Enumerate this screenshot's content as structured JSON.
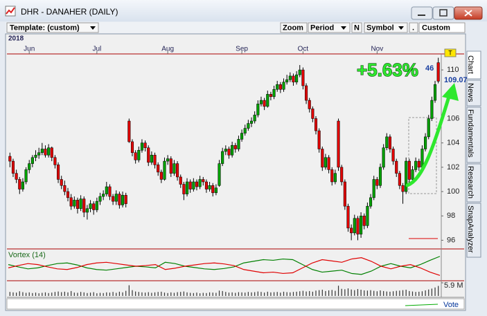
{
  "window": {
    "title": "DHR - DANAHER (DAILY)"
  },
  "toolbar": {
    "template": "Template: (custom)",
    "zoom": "Zoom",
    "period": "Period",
    "n": "N",
    "symbol": "Symbol",
    "dot": ".",
    "custom": "Custom"
  },
  "tabs": [
    "Chart",
    "News",
    "Fundamentals",
    "Research",
    "SnapAnalyzer"
  ],
  "footer": {
    "vote": "Vote"
  },
  "chart_data": [
    {
      "type": "candlestick",
      "year_label": "2018",
      "annotation": "+5.63%",
      "tag": "T",
      "partial_label": "46",
      "last_price": 109.07,
      "up_color": "#00a000",
      "down_color": "#e00000",
      "xlim": [
        -0.5,
        133.5
      ],
      "xticks": [
        {
          "value": 6,
          "label": "Jun"
        },
        {
          "value": 27,
          "label": "Jul"
        },
        {
          "value": 49,
          "label": "Aug"
        },
        {
          "value": 72,
          "label": "Sep"
        },
        {
          "value": 91,
          "label": "Oct"
        },
        {
          "value": 114,
          "label": "Nov"
        }
      ],
      "ylim": [
        95.4,
        111.2
      ],
      "yticks": [
        96,
        98,
        100,
        102,
        104,
        106,
        110
      ],
      "ohlc": [
        [
          102.9,
          103.2,
          102.0,
          102.5
        ],
        [
          102.5,
          102.7,
          101.2,
          101.5
        ],
        [
          101.5,
          101.8,
          100.7,
          101.0
        ],
        [
          101.0,
          101.2,
          99.8,
          100.2
        ],
        [
          100.2,
          101.1,
          100.0,
          100.8
        ],
        [
          100.8,
          102.0,
          100.6,
          101.8
        ],
        [
          101.8,
          102.6,
          101.5,
          102.3
        ],
        [
          102.3,
          103.0,
          102.0,
          102.8
        ],
        [
          102.8,
          103.4,
          102.5,
          103.0
        ],
        [
          103.0,
          103.6,
          102.7,
          103.2
        ],
        [
          103.2,
          104.0,
          103.0,
          103.5
        ],
        [
          103.5,
          103.8,
          102.8,
          103.0
        ],
        [
          103.0,
          103.9,
          102.8,
          103.6
        ],
        [
          103.6,
          103.7,
          102.5,
          102.8
        ],
        [
          102.8,
          103.0,
          101.9,
          102.2
        ],
        [
          102.2,
          102.4,
          100.7,
          101.0
        ],
        [
          101.0,
          101.3,
          100.2,
          100.5
        ],
        [
          100.5,
          100.9,
          99.7,
          100.0
        ],
        [
          100.0,
          100.3,
          99.2,
          99.5
        ],
        [
          99.5,
          99.8,
          98.5,
          98.8
        ],
        [
          98.8,
          99.6,
          98.6,
          99.3
        ],
        [
          99.3,
          99.5,
          98.2,
          98.6
        ],
        [
          98.6,
          99.7,
          98.4,
          99.4
        ],
        [
          99.4,
          99.6,
          97.9,
          98.3
        ],
        [
          98.3,
          98.9,
          97.7,
          98.6
        ],
        [
          98.6,
          99.3,
          98.3,
          99.0
        ],
        [
          99.0,
          99.2,
          98.1,
          98.5
        ],
        [
          98.5,
          99.5,
          98.3,
          99.2
        ],
        [
          99.2,
          99.9,
          98.9,
          99.6
        ],
        [
          99.6,
          100.1,
          99.3,
          99.8
        ],
        [
          99.8,
          100.8,
          99.6,
          100.4
        ],
        [
          100.4,
          100.6,
          99.3,
          99.6
        ],
        [
          99.6,
          99.8,
          98.9,
          99.2
        ],
        [
          99.2,
          100.1,
          98.9,
          99.8
        ],
        [
          99.8,
          100.0,
          98.6,
          98.9
        ],
        [
          98.9,
          100.0,
          98.7,
          99.7
        ],
        [
          99.7,
          99.9,
          98.7,
          99.0
        ],
        [
          105.8,
          106.0,
          104.0,
          104.1
        ],
        [
          104.1,
          104.3,
          102.9,
          103.2
        ],
        [
          103.2,
          103.4,
          102.3,
          102.6
        ],
        [
          102.6,
          103.7,
          102.4,
          103.4
        ],
        [
          103.4,
          104.3,
          103.2,
          104.0
        ],
        [
          104.0,
          104.2,
          103.3,
          103.6
        ],
        [
          103.6,
          103.8,
          102.1,
          102.4
        ],
        [
          102.4,
          103.3,
          102.2,
          103.0
        ],
        [
          103.0,
          103.2,
          101.9,
          102.2
        ],
        [
          102.2,
          102.4,
          101.3,
          101.6
        ],
        [
          101.6,
          101.8,
          100.7,
          101.0
        ],
        [
          101.0,
          102.8,
          100.9,
          102.5
        ],
        [
          102.5,
          103.0,
          102.2,
          102.7
        ],
        [
          102.7,
          102.9,
          101.2,
          101.5
        ],
        [
          101.5,
          102.6,
          101.3,
          102.3
        ],
        [
          102.3,
          102.5,
          100.9,
          101.2
        ],
        [
          101.2,
          101.4,
          100.3,
          100.6
        ],
        [
          100.6,
          100.8,
          99.3,
          99.8
        ],
        [
          99.8,
          101.1,
          99.6,
          100.8
        ],
        [
          100.8,
          101.0,
          99.9,
          100.2
        ],
        [
          100.2,
          101.1,
          100.0,
          100.8
        ],
        [
          100.8,
          101.0,
          100.1,
          100.4
        ],
        [
          100.4,
          101.3,
          100.2,
          101.0
        ],
        [
          101.0,
          101.2,
          100.5,
          100.8
        ],
        [
          100.8,
          101.0,
          99.9,
          100.2
        ],
        [
          100.2,
          100.8,
          100.0,
          100.5
        ],
        [
          100.5,
          100.7,
          99.6,
          99.9
        ],
        [
          99.9,
          100.6,
          99.7,
          100.3
        ],
        [
          100.5,
          102.6,
          100.4,
          102.3
        ],
        [
          102.3,
          103.6,
          102.1,
          103.3
        ],
        [
          103.3,
          103.8,
          103.0,
          103.5
        ],
        [
          103.5,
          103.7,
          102.7,
          103.0
        ],
        [
          103.0,
          104.1,
          102.8,
          103.8
        ],
        [
          103.8,
          104.0,
          103.2,
          103.5
        ],
        [
          103.5,
          104.6,
          103.3,
          104.3
        ],
        [
          104.3,
          105.1,
          104.1,
          104.8
        ],
        [
          104.8,
          105.5,
          104.6,
          105.2
        ],
        [
          105.2,
          105.9,
          105.0,
          105.6
        ],
        [
          105.6,
          106.1,
          105.3,
          105.8
        ],
        [
          105.8,
          106.6,
          105.6,
          106.3
        ],
        [
          106.3,
          107.5,
          106.1,
          107.2
        ],
        [
          107.2,
          107.8,
          107.0,
          107.5
        ],
        [
          107.5,
          107.7,
          106.7,
          107.0
        ],
        [
          107.0,
          108.3,
          106.9,
          108.0
        ],
        [
          108.0,
          108.2,
          107.5,
          107.8
        ],
        [
          107.8,
          108.7,
          107.6,
          108.4
        ],
        [
          108.4,
          109.1,
          108.2,
          108.8
        ],
        [
          108.8,
          109.0,
          108.1,
          108.4
        ],
        [
          108.4,
          109.3,
          108.2,
          109.0
        ],
        [
          109.0,
          109.6,
          108.8,
          109.2
        ],
        [
          109.2,
          109.8,
          109.0,
          109.5
        ],
        [
          109.5,
          109.7,
          108.7,
          109.0
        ],
        [
          109.0,
          109.9,
          108.8,
          109.6
        ],
        [
          109.6,
          110.4,
          109.4,
          110.0
        ],
        [
          110.0,
          110.2,
          108.4,
          108.7
        ],
        [
          108.7,
          108.9,
          107.2,
          107.5
        ],
        [
          107.5,
          107.7,
          106.5,
          106.8
        ],
        [
          106.8,
          107.0,
          105.7,
          106.0
        ],
        [
          106.0,
          106.2,
          104.7,
          105.0
        ],
        [
          105.0,
          105.2,
          103.2,
          103.5
        ],
        [
          103.5,
          103.7,
          101.7,
          102.0
        ],
        [
          102.0,
          103.1,
          101.8,
          102.8
        ],
        [
          102.8,
          103.0,
          101.5,
          101.8
        ],
        [
          101.8,
          102.0,
          100.5,
          100.8
        ],
        [
          100.8,
          101.8,
          100.6,
          101.5
        ],
        [
          105.8,
          106.0,
          101.7,
          102.0
        ],
        [
          102.0,
          102.2,
          100.5,
          100.8
        ],
        [
          100.8,
          101.0,
          98.5,
          98.8
        ],
        [
          98.8,
          99.0,
          96.7,
          97.0
        ],
        [
          97.0,
          97.3,
          96.0,
          96.6
        ],
        [
          96.6,
          98.1,
          96.4,
          97.8
        ],
        [
          97.8,
          98.0,
          96.0,
          96.5
        ],
        [
          96.5,
          98.3,
          96.2,
          98.0
        ],
        [
          98.0,
          98.2,
          96.9,
          97.2
        ],
        [
          97.2,
          99.1,
          97.0,
          98.8
        ],
        [
          98.8,
          99.8,
          98.6,
          99.5
        ],
        [
          99.5,
          101.3,
          99.3,
          101.0
        ],
        [
          101.0,
          101.2,
          100.2,
          100.5
        ],
        [
          100.5,
          102.3,
          100.3,
          102.0
        ],
        [
          102.0,
          103.9,
          101.8,
          103.6
        ],
        [
          103.6,
          104.8,
          103.4,
          104.5
        ],
        [
          104.5,
          104.7,
          103.2,
          103.5
        ],
        [
          103.5,
          103.7,
          102.2,
          102.5
        ],
        [
          102.5,
          102.7,
          101.2,
          101.5
        ],
        [
          101.5,
          101.7,
          100.2,
          100.5
        ],
        [
          100.5,
          100.7,
          99.0,
          100.0
        ],
        [
          100.0,
          102.8,
          99.8,
          102.5
        ],
        [
          102.5,
          102.7,
          100.7,
          101.0
        ],
        [
          101.0,
          102.1,
          100.8,
          101.8
        ],
        [
          101.8,
          102.8,
          101.6,
          102.5
        ],
        [
          102.5,
          102.7,
          101.7,
          102.0
        ],
        [
          102.0,
          103.8,
          101.8,
          103.5
        ],
        [
          103.5,
          104.8,
          103.3,
          104.5
        ],
        [
          104.5,
          106.3,
          104.3,
          106.0
        ],
        [
          106.0,
          107.8,
          105.8,
          107.5
        ],
        [
          107.5,
          109.1,
          107.3,
          108.8
        ],
        [
          110.6,
          111.0,
          108.9,
          109.07
        ]
      ]
    },
    {
      "type": "line",
      "title": "Vortex (14)",
      "ylim": [
        0.6,
        1.4
      ],
      "series": [
        {
          "color": "#008000",
          "values": [
            1.05,
            0.98,
            0.92,
            0.95,
            1.02,
            1.08,
            1.1,
            1.04,
            0.95,
            0.9,
            0.88,
            0.92,
            0.96,
            1.0,
            0.98,
            0.95,
            1.12,
            1.08,
            1.0,
            0.96,
            0.92,
            0.9,
            0.93,
            0.98,
            1.1,
            1.15,
            1.2,
            1.18,
            1.22,
            1.2,
            1.05,
            0.9,
            0.82,
            0.85,
            0.88,
            0.78,
            0.75,
            0.85,
            1.0,
            1.08,
            1.0,
            0.95,
            1.05,
            1.18,
            1.3
          ]
        },
        {
          "color": "#e00000",
          "values": [
            0.95,
            1.02,
            1.08,
            1.05,
            0.98,
            0.92,
            0.9,
            0.96,
            1.05,
            1.1,
            1.12,
            1.08,
            1.04,
            1.0,
            1.02,
            1.05,
            0.9,
            0.94,
            1.0,
            1.04,
            1.08,
            1.1,
            1.07,
            1.02,
            0.9,
            0.85,
            0.8,
            0.82,
            0.78,
            0.8,
            0.95,
            1.1,
            1.2,
            1.16,
            1.12,
            1.22,
            1.26,
            1.15,
            1.0,
            0.92,
            1.0,
            1.05,
            0.95,
            0.82,
            0.72
          ]
        }
      ]
    },
    {
      "type": "bar",
      "color": "#333333",
      "ylim": [
        0,
        5.9
      ],
      "yticks": [
        {
          "value": 5.9,
          "label": "5.9 M"
        }
      ],
      "values": [
        1.8,
        1.6,
        1.5,
        2.1,
        1.7,
        1.4,
        1.6,
        1.3,
        1.5,
        1.2,
        1.4,
        1.6,
        1.3,
        1.5,
        1.8,
        2.0,
        1.7,
        1.9,
        1.6,
        2.2,
        1.5,
        1.4,
        1.8,
        1.6,
        1.3,
        1.5,
        1.7,
        1.2,
        1.4,
        1.3,
        1.6,
        1.5,
        1.8,
        1.4,
        1.9,
        1.6,
        2.3,
        4.8,
        2.6,
        2.0,
        1.8,
        1.6,
        1.5,
        1.7,
        1.4,
        1.6,
        1.8,
        1.9,
        1.5,
        1.3,
        1.6,
        1.4,
        1.7,
        1.8,
        2.0,
        1.6,
        1.4,
        1.3,
        1.5,
        1.2,
        1.4,
        1.3,
        1.6,
        1.5,
        1.4,
        2.4,
        2.2,
        1.8,
        1.5,
        1.6,
        1.4,
        1.7,
        1.6,
        1.5,
        1.8,
        1.6,
        1.7,
        2.0,
        1.8,
        1.5,
        1.9,
        1.6,
        1.7,
        1.8,
        1.5,
        1.9,
        1.7,
        1.6,
        1.8,
        1.9,
        2.1,
        2.3,
        2.0,
        2.2,
        1.9,
        2.4,
        2.6,
        2.8,
        2.2,
        2.5,
        2.7,
        2.3,
        4.6,
        3.2,
        3.0,
        3.4,
        2.9,
        2.6,
        3.1,
        2.8,
        2.5,
        2.4,
        2.6,
        2.3,
        2.1,
        2.5,
        2.2,
        2.0,
        1.9,
        2.1,
        2.3,
        2.4,
        2.6,
        2.8,
        2.2,
        2.0,
        1.8,
        1.9,
        2.1,
        2.5,
        2.9,
        3.3,
        3.8,
        4.5
      ]
    }
  ]
}
